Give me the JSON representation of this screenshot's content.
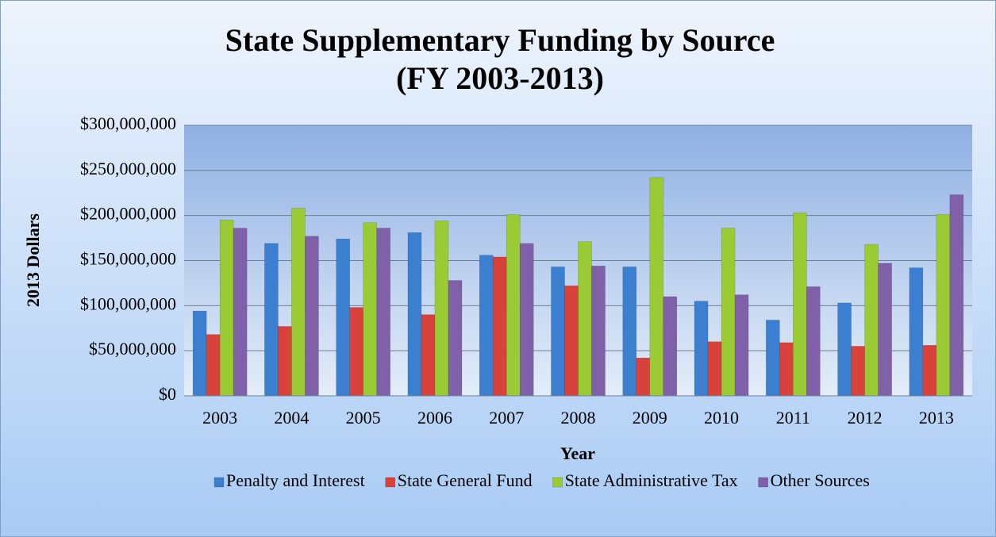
{
  "chart_data": {
    "type": "bar",
    "title": [
      "State Supplementary Funding by Source",
      "(FY 2003-2013)"
    ],
    "x_label": "Year",
    "y_label": "2013 Dollars",
    "categories": [
      "2003",
      "2004",
      "2005",
      "2006",
      "2007",
      "2008",
      "2009",
      "2010",
      "2011",
      "2012",
      "2013"
    ],
    "series": [
      {
        "name": "Penalty and Interest",
        "color": "#3b7fd1",
        "values": [
          94000000,
          169000000,
          174000000,
          181000000,
          156000000,
          143000000,
          143000000,
          105000000,
          84000000,
          103000000,
          142000000
        ]
      },
      {
        "name": "State General Fund",
        "color": "#d8423b",
        "values": [
          68000000,
          77000000,
          98000000,
          90000000,
          154000000,
          122000000,
          42000000,
          60000000,
          59000000,
          55000000,
          56000000
        ]
      },
      {
        "name": "State Administrative Tax",
        "color": "#9acb34",
        "values": [
          195000000,
          208000000,
          192000000,
          194000000,
          201000000,
          171000000,
          242000000,
          186000000,
          203000000,
          168000000,
          201000000
        ]
      },
      {
        "name": "Other Sources",
        "color": "#8060a8",
        "values": [
          186000000,
          177000000,
          186000000,
          128000000,
          169000000,
          144000000,
          110000000,
          112000000,
          121000000,
          147000000,
          223000000
        ]
      }
    ],
    "ylim": [
      0,
      300000000
    ],
    "yticks": [
      {
        "value": 0,
        "label": "$0"
      },
      {
        "value": 50000000,
        "label": "$50,000,000"
      },
      {
        "value": 100000000,
        "label": "$100,000,000"
      },
      {
        "value": 150000000,
        "label": "$150,000,000"
      },
      {
        "value": 200000000,
        "label": "$200,000,000"
      },
      {
        "value": 250000000,
        "label": "$250,000,000"
      },
      {
        "value": 300000000,
        "label": "$300,000,000"
      }
    ],
    "grid": true,
    "legend": "bottom"
  }
}
